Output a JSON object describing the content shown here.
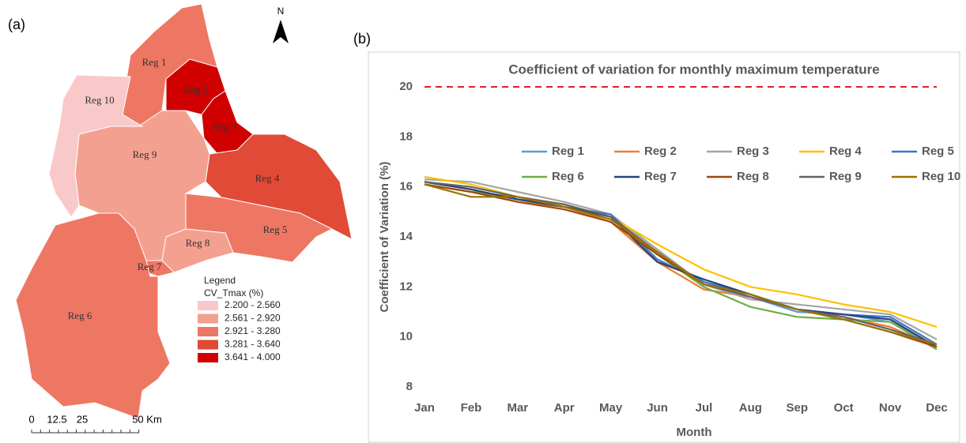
{
  "map": {
    "label": "(a)",
    "north": "N",
    "regions": [
      "Reg 1",
      "Reg 2",
      "Reg 3",
      "Reg 4",
      "Reg 5",
      "Reg 6",
      "Reg 7",
      "Reg 8",
      "Reg 9",
      "Reg 10"
    ],
    "legend": {
      "title": "Legend",
      "subtitle": "CV_Tmax (%)",
      "classes": [
        {
          "label": "2.200 - 2.560",
          "color": "#f9c9c9"
        },
        {
          "label": "2.561 - 2.920",
          "color": "#f4a090"
        },
        {
          "label": "2.921 - 3.280",
          "color": "#ee7763"
        },
        {
          "label": "3.281 - 3.640",
          "color": "#e04a36"
        },
        {
          "label": "3.641 - 4.000",
          "color": "#d00000"
        }
      ]
    },
    "scale": [
      "0",
      "12.5",
      "25",
      "50 Km"
    ]
  },
  "chart_data": {
    "type": "line",
    "label": "(b)",
    "title": "Coefficient of variation for monthly maximum temperature",
    "x_label": "Month",
    "y_label": "Coefficient of Variation (%)",
    "categories": [
      "Jan",
      "Feb",
      "Mar",
      "Apr",
      "May",
      "Jun",
      "Jul",
      "Aug",
      "Sep",
      "Oct",
      "Nov",
      "Dec"
    ],
    "ylim": [
      8,
      20
    ],
    "yticks": [
      8,
      10,
      12,
      14,
      16,
      18,
      20
    ],
    "reference_line": {
      "value": 20,
      "color": "#e02020"
    },
    "series": [
      {
        "name": "Reg 1",
        "color": "#5b9bd5",
        "values": [
          16.2,
          15.9,
          15.5,
          15.3,
          14.8,
          13.3,
          12.2,
          11.6,
          11.0,
          10.9,
          10.6,
          9.6
        ]
      },
      {
        "name": "Reg 2",
        "color": "#ed7d31",
        "values": [
          16.2,
          15.9,
          15.4,
          15.2,
          14.6,
          13.0,
          11.9,
          11.6,
          11.1,
          10.8,
          10.4,
          9.6
        ]
      },
      {
        "name": "Reg 3",
        "color": "#a5a5a5",
        "values": [
          16.3,
          16.2,
          15.8,
          15.4,
          14.9,
          13.5,
          12.1,
          11.5,
          11.3,
          11.1,
          10.9,
          9.9
        ]
      },
      {
        "name": "Reg 4",
        "color": "#ffc000",
        "values": [
          16.4,
          16.1,
          15.6,
          15.3,
          14.8,
          13.7,
          12.7,
          12.0,
          11.7,
          11.3,
          11.0,
          10.4
        ]
      },
      {
        "name": "Reg 5",
        "color": "#4472c4",
        "values": [
          16.2,
          15.9,
          15.5,
          15.2,
          14.9,
          13.1,
          12.2,
          11.7,
          11.1,
          10.9,
          10.8,
          9.7
        ]
      },
      {
        "name": "Reg 6",
        "color": "#70ad47",
        "values": [
          16.1,
          15.8,
          15.6,
          15.2,
          14.8,
          13.3,
          12.0,
          11.2,
          10.8,
          10.7,
          10.6,
          9.5
        ]
      },
      {
        "name": "Reg 7",
        "color": "#264478",
        "values": [
          16.2,
          15.9,
          15.5,
          15.2,
          14.8,
          13.0,
          12.3,
          11.7,
          11.1,
          10.9,
          10.7,
          9.6
        ]
      },
      {
        "name": "Reg 8",
        "color": "#9e480e",
        "values": [
          16.1,
          15.8,
          15.4,
          15.1,
          14.6,
          13.3,
          12.1,
          11.7,
          11.1,
          10.7,
          10.2,
          9.6
        ]
      },
      {
        "name": "Reg 9",
        "color": "#636363",
        "values": [
          16.2,
          16.0,
          15.6,
          15.3,
          14.8,
          13.4,
          12.1,
          11.6,
          11.1,
          10.8,
          10.3,
          9.7
        ]
      },
      {
        "name": "Reg 10",
        "color": "#997300",
        "values": [
          16.1,
          15.6,
          15.6,
          15.2,
          14.7,
          13.4,
          12.1,
          11.7,
          11.1,
          10.7,
          10.2,
          9.7
        ]
      }
    ]
  }
}
